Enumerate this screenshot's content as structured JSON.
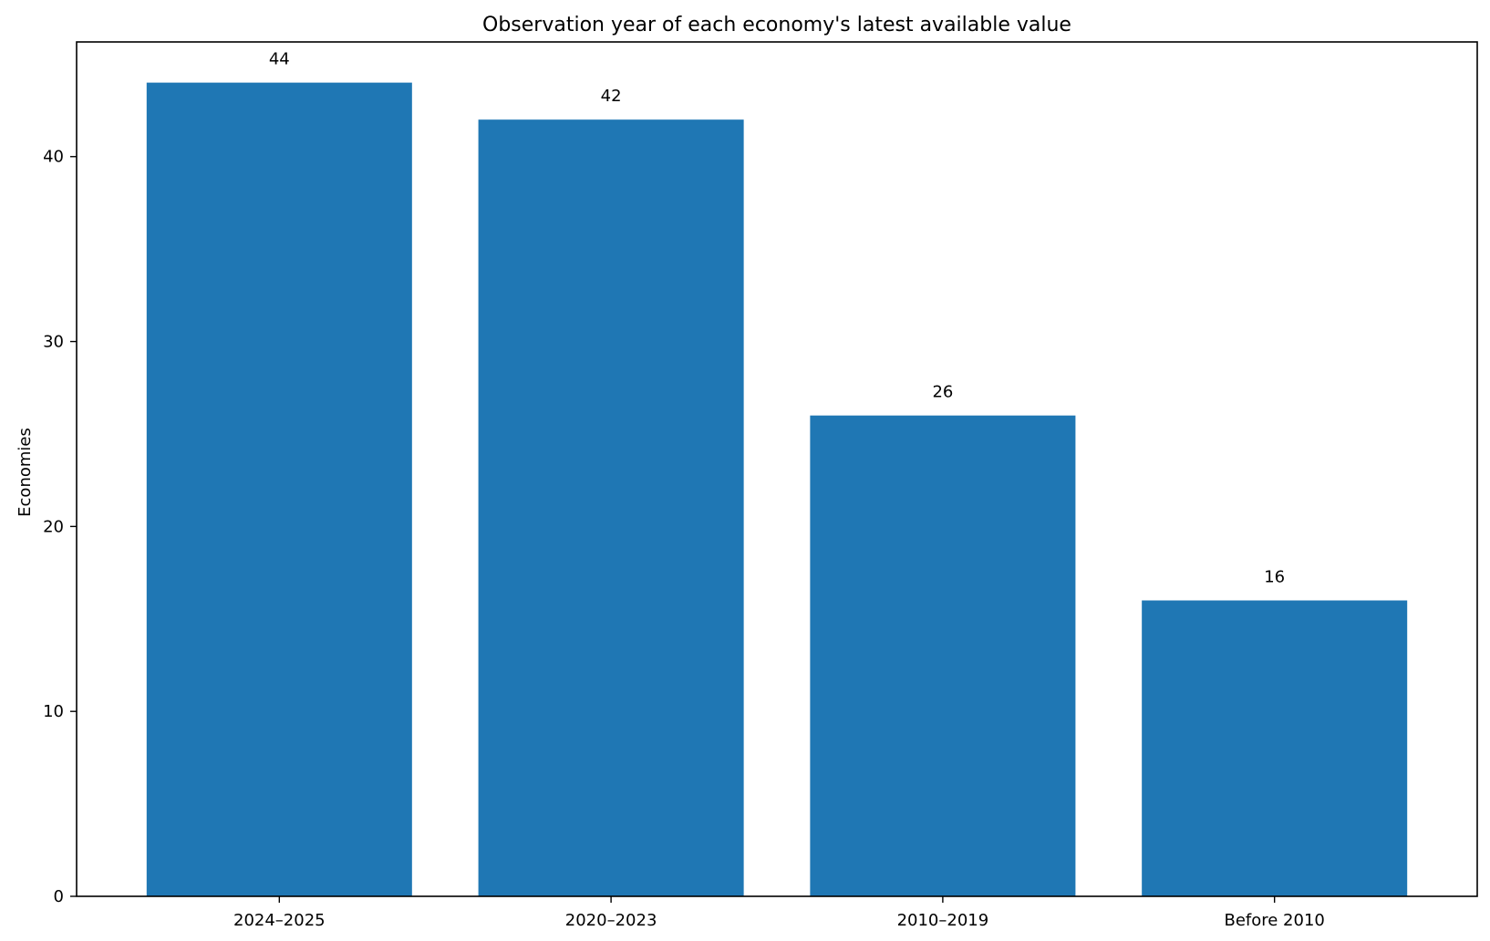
{
  "chart_data": {
    "type": "bar",
    "title": "Observation year of each economy's latest available value",
    "xlabel": "",
    "ylabel": "Economies",
    "categories": [
      "2024–2025",
      "2020–2023",
      "2010–2019",
      "Before 2010"
    ],
    "values": [
      44,
      42,
      26,
      16
    ],
    "data_labels": [
      "44",
      "42",
      "26",
      "16"
    ],
    "ylim": [
      0,
      46.2
    ],
    "yticks": [
      0,
      10,
      20,
      30,
      40
    ],
    "ytick_labels": [
      "0",
      "10",
      "20",
      "30",
      "40"
    ],
    "grid": false,
    "legend": "none",
    "bar_color": "#1f77b4"
  }
}
